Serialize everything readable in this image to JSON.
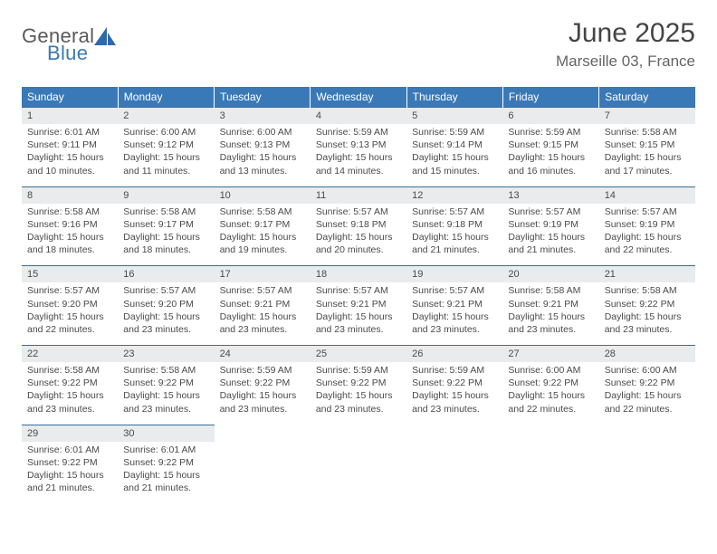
{
  "brand": {
    "word1": "General",
    "word2": "Blue",
    "icon_color": "#2f6aa8"
  },
  "title": "June 2025",
  "location": "Marseille 03, France",
  "colors": {
    "header_bg": "#3a79b7",
    "header_text": "#ffffff",
    "daynum_bg": "#e9ebed",
    "row_divider": "#3a6c9c",
    "body_text": "#4a4a4a",
    "title_text": "#454545",
    "location_text": "#656565"
  },
  "typography": {
    "title_fontsize": 30,
    "location_fontsize": 17,
    "header_fontsize": 12,
    "cell_fontsize": 10.5
  },
  "weekdays": [
    "Sunday",
    "Monday",
    "Tuesday",
    "Wednesday",
    "Thursday",
    "Friday",
    "Saturday"
  ],
  "weeks": [
    [
      {
        "num": "1",
        "sunrise": "Sunrise: 6:01 AM",
        "sunset": "Sunset: 9:11 PM",
        "daylight1": "Daylight: 15 hours",
        "daylight2": "and 10 minutes."
      },
      {
        "num": "2",
        "sunrise": "Sunrise: 6:00 AM",
        "sunset": "Sunset: 9:12 PM",
        "daylight1": "Daylight: 15 hours",
        "daylight2": "and 11 minutes."
      },
      {
        "num": "3",
        "sunrise": "Sunrise: 6:00 AM",
        "sunset": "Sunset: 9:13 PM",
        "daylight1": "Daylight: 15 hours",
        "daylight2": "and 13 minutes."
      },
      {
        "num": "4",
        "sunrise": "Sunrise: 5:59 AM",
        "sunset": "Sunset: 9:13 PM",
        "daylight1": "Daylight: 15 hours",
        "daylight2": "and 14 minutes."
      },
      {
        "num": "5",
        "sunrise": "Sunrise: 5:59 AM",
        "sunset": "Sunset: 9:14 PM",
        "daylight1": "Daylight: 15 hours",
        "daylight2": "and 15 minutes."
      },
      {
        "num": "6",
        "sunrise": "Sunrise: 5:59 AM",
        "sunset": "Sunset: 9:15 PM",
        "daylight1": "Daylight: 15 hours",
        "daylight2": "and 16 minutes."
      },
      {
        "num": "7",
        "sunrise": "Sunrise: 5:58 AM",
        "sunset": "Sunset: 9:15 PM",
        "daylight1": "Daylight: 15 hours",
        "daylight2": "and 17 minutes."
      }
    ],
    [
      {
        "num": "8",
        "sunrise": "Sunrise: 5:58 AM",
        "sunset": "Sunset: 9:16 PM",
        "daylight1": "Daylight: 15 hours",
        "daylight2": "and 18 minutes."
      },
      {
        "num": "9",
        "sunrise": "Sunrise: 5:58 AM",
        "sunset": "Sunset: 9:17 PM",
        "daylight1": "Daylight: 15 hours",
        "daylight2": "and 18 minutes."
      },
      {
        "num": "10",
        "sunrise": "Sunrise: 5:58 AM",
        "sunset": "Sunset: 9:17 PM",
        "daylight1": "Daylight: 15 hours",
        "daylight2": "and 19 minutes."
      },
      {
        "num": "11",
        "sunrise": "Sunrise: 5:57 AM",
        "sunset": "Sunset: 9:18 PM",
        "daylight1": "Daylight: 15 hours",
        "daylight2": "and 20 minutes."
      },
      {
        "num": "12",
        "sunrise": "Sunrise: 5:57 AM",
        "sunset": "Sunset: 9:18 PM",
        "daylight1": "Daylight: 15 hours",
        "daylight2": "and 21 minutes."
      },
      {
        "num": "13",
        "sunrise": "Sunrise: 5:57 AM",
        "sunset": "Sunset: 9:19 PM",
        "daylight1": "Daylight: 15 hours",
        "daylight2": "and 21 minutes."
      },
      {
        "num": "14",
        "sunrise": "Sunrise: 5:57 AM",
        "sunset": "Sunset: 9:19 PM",
        "daylight1": "Daylight: 15 hours",
        "daylight2": "and 22 minutes."
      }
    ],
    [
      {
        "num": "15",
        "sunrise": "Sunrise: 5:57 AM",
        "sunset": "Sunset: 9:20 PM",
        "daylight1": "Daylight: 15 hours",
        "daylight2": "and 22 minutes."
      },
      {
        "num": "16",
        "sunrise": "Sunrise: 5:57 AM",
        "sunset": "Sunset: 9:20 PM",
        "daylight1": "Daylight: 15 hours",
        "daylight2": "and 23 minutes."
      },
      {
        "num": "17",
        "sunrise": "Sunrise: 5:57 AM",
        "sunset": "Sunset: 9:21 PM",
        "daylight1": "Daylight: 15 hours",
        "daylight2": "and 23 minutes."
      },
      {
        "num": "18",
        "sunrise": "Sunrise: 5:57 AM",
        "sunset": "Sunset: 9:21 PM",
        "daylight1": "Daylight: 15 hours",
        "daylight2": "and 23 minutes."
      },
      {
        "num": "19",
        "sunrise": "Sunrise: 5:57 AM",
        "sunset": "Sunset: 9:21 PM",
        "daylight1": "Daylight: 15 hours",
        "daylight2": "and 23 minutes."
      },
      {
        "num": "20",
        "sunrise": "Sunrise: 5:58 AM",
        "sunset": "Sunset: 9:21 PM",
        "daylight1": "Daylight: 15 hours",
        "daylight2": "and 23 minutes."
      },
      {
        "num": "21",
        "sunrise": "Sunrise: 5:58 AM",
        "sunset": "Sunset: 9:22 PM",
        "daylight1": "Daylight: 15 hours",
        "daylight2": "and 23 minutes."
      }
    ],
    [
      {
        "num": "22",
        "sunrise": "Sunrise: 5:58 AM",
        "sunset": "Sunset: 9:22 PM",
        "daylight1": "Daylight: 15 hours",
        "daylight2": "and 23 minutes."
      },
      {
        "num": "23",
        "sunrise": "Sunrise: 5:58 AM",
        "sunset": "Sunset: 9:22 PM",
        "daylight1": "Daylight: 15 hours",
        "daylight2": "and 23 minutes."
      },
      {
        "num": "24",
        "sunrise": "Sunrise: 5:59 AM",
        "sunset": "Sunset: 9:22 PM",
        "daylight1": "Daylight: 15 hours",
        "daylight2": "and 23 minutes."
      },
      {
        "num": "25",
        "sunrise": "Sunrise: 5:59 AM",
        "sunset": "Sunset: 9:22 PM",
        "daylight1": "Daylight: 15 hours",
        "daylight2": "and 23 minutes."
      },
      {
        "num": "26",
        "sunrise": "Sunrise: 5:59 AM",
        "sunset": "Sunset: 9:22 PM",
        "daylight1": "Daylight: 15 hours",
        "daylight2": "and 23 minutes."
      },
      {
        "num": "27",
        "sunrise": "Sunrise: 6:00 AM",
        "sunset": "Sunset: 9:22 PM",
        "daylight1": "Daylight: 15 hours",
        "daylight2": "and 22 minutes."
      },
      {
        "num": "28",
        "sunrise": "Sunrise: 6:00 AM",
        "sunset": "Sunset: 9:22 PM",
        "daylight1": "Daylight: 15 hours",
        "daylight2": "and 22 minutes."
      }
    ],
    [
      {
        "num": "29",
        "sunrise": "Sunrise: 6:01 AM",
        "sunset": "Sunset: 9:22 PM",
        "daylight1": "Daylight: 15 hours",
        "daylight2": "and 21 minutes."
      },
      {
        "num": "30",
        "sunrise": "Sunrise: 6:01 AM",
        "sunset": "Sunset: 9:22 PM",
        "daylight1": "Daylight: 15 hours",
        "daylight2": "and 21 minutes."
      },
      null,
      null,
      null,
      null,
      null
    ]
  ]
}
